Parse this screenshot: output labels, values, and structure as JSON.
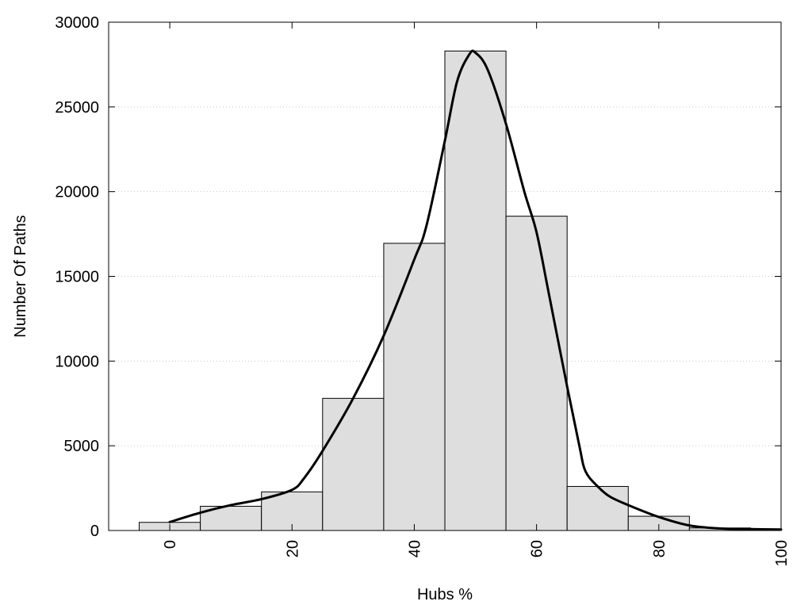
{
  "chart_data": {
    "type": "bar",
    "xlabel": "Hubs %",
    "ylabel": "Number Of Paths",
    "xlim": [
      -10,
      100
    ],
    "ylim": [
      0,
      30000
    ],
    "x_ticks": [
      0,
      20,
      40,
      60,
      80,
      100
    ],
    "y_ticks": [
      0,
      5000,
      10000,
      15000,
      20000,
      25000,
      30000
    ],
    "bin_width": 10,
    "grid": true,
    "legend": false,
    "bins": [
      {
        "center": 0,
        "value": 480
      },
      {
        "center": 10,
        "value": 1430
      },
      {
        "center": 20,
        "value": 2280
      },
      {
        "center": 30,
        "value": 7800
      },
      {
        "center": 40,
        "value": 16950
      },
      {
        "center": 50,
        "value": 28300
      },
      {
        "center": 60,
        "value": 18550
      },
      {
        "center": 70,
        "value": 2600
      },
      {
        "center": 80,
        "value": 840
      },
      {
        "center": 90,
        "value": 150
      },
      {
        "center": 100,
        "value": 60
      }
    ],
    "density_curve": [
      {
        "x": 0,
        "y": 500
      },
      {
        "x": 5,
        "y": 1050
      },
      {
        "x": 10,
        "y": 1500
      },
      {
        "x": 15,
        "y": 1850
      },
      {
        "x": 20,
        "y": 2400
      },
      {
        "x": 22,
        "y": 3100
      },
      {
        "x": 25,
        "y": 4700
      },
      {
        "x": 30,
        "y": 7800
      },
      {
        "x": 35,
        "y": 11500
      },
      {
        "x": 40,
        "y": 16000
      },
      {
        "x": 42,
        "y": 18000
      },
      {
        "x": 45,
        "y": 23000
      },
      {
        "x": 47,
        "y": 26500
      },
      {
        "x": 49,
        "y": 28100
      },
      {
        "x": 50,
        "y": 28200
      },
      {
        "x": 52,
        "y": 27200
      },
      {
        "x": 55,
        "y": 24000
      },
      {
        "x": 58,
        "y": 20000
      },
      {
        "x": 60,
        "y": 17600
      },
      {
        "x": 62,
        "y": 14000
      },
      {
        "x": 65,
        "y": 8500
      },
      {
        "x": 67,
        "y": 5000
      },
      {
        "x": 68,
        "y": 3500
      },
      {
        "x": 70,
        "y": 2600
      },
      {
        "x": 72,
        "y": 2000
      },
      {
        "x": 75,
        "y": 1500
      },
      {
        "x": 80,
        "y": 800
      },
      {
        "x": 85,
        "y": 300
      },
      {
        "x": 90,
        "y": 120
      },
      {
        "x": 95,
        "y": 80
      },
      {
        "x": 100,
        "y": 60
      }
    ],
    "colors": {
      "bar_fill": "#dedede",
      "bar_stroke": "#000000",
      "curve": "#000000",
      "grid": "#c8c8c8",
      "frame": "#000000"
    }
  }
}
